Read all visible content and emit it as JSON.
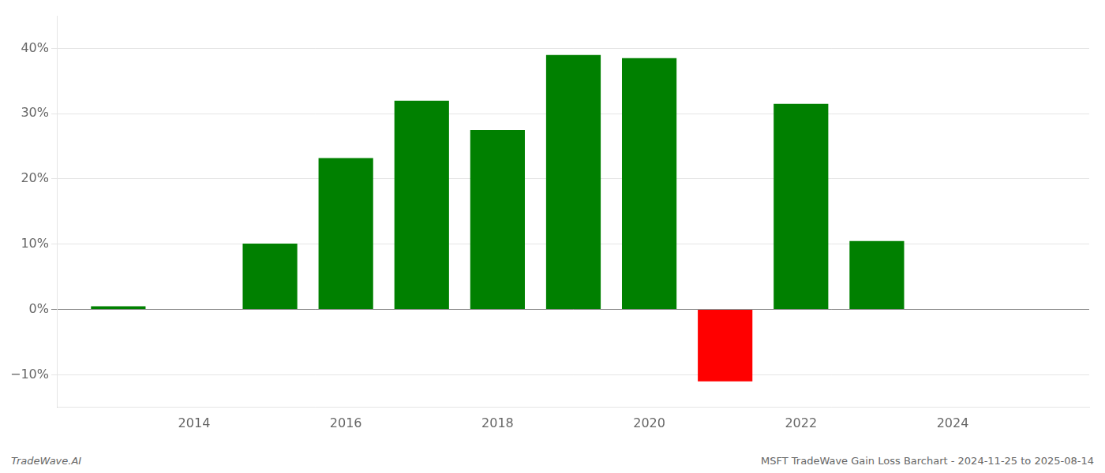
{
  "chart_data": {
    "type": "bar",
    "x": [
      2013,
      2015,
      2016,
      2017,
      2018,
      2019,
      2020,
      2021,
      2022,
      2023
    ],
    "values": [
      0.5,
      10.1,
      23.2,
      32.0,
      27.5,
      39.0,
      38.5,
      -11.0,
      31.5,
      10.5
    ],
    "colors": [
      "#008000",
      "#008000",
      "#008000",
      "#008000",
      "#008000",
      "#008000",
      "#008000",
      "#ff0000",
      "#008000",
      "#008000"
    ],
    "xlim": [
      2012.2,
      2025.8
    ],
    "xticks": [
      2014,
      2016,
      2018,
      2020,
      2022,
      2024
    ],
    "ylim": [
      -15,
      45
    ],
    "yticks": [
      {
        "value": -10,
        "label": "−10%"
      },
      {
        "value": 0,
        "label": "0%"
      },
      {
        "value": 10,
        "label": "10%"
      },
      {
        "value": 20,
        "label": "20%"
      },
      {
        "value": 30,
        "label": "30%"
      },
      {
        "value": 40,
        "label": "40%"
      }
    ],
    "grid": true,
    "annotations": [
      "TradeWave.AI",
      "MSFT TradeWave Gain Loss Barchart - 2024-11-25 to 2025-08-14"
    ]
  }
}
